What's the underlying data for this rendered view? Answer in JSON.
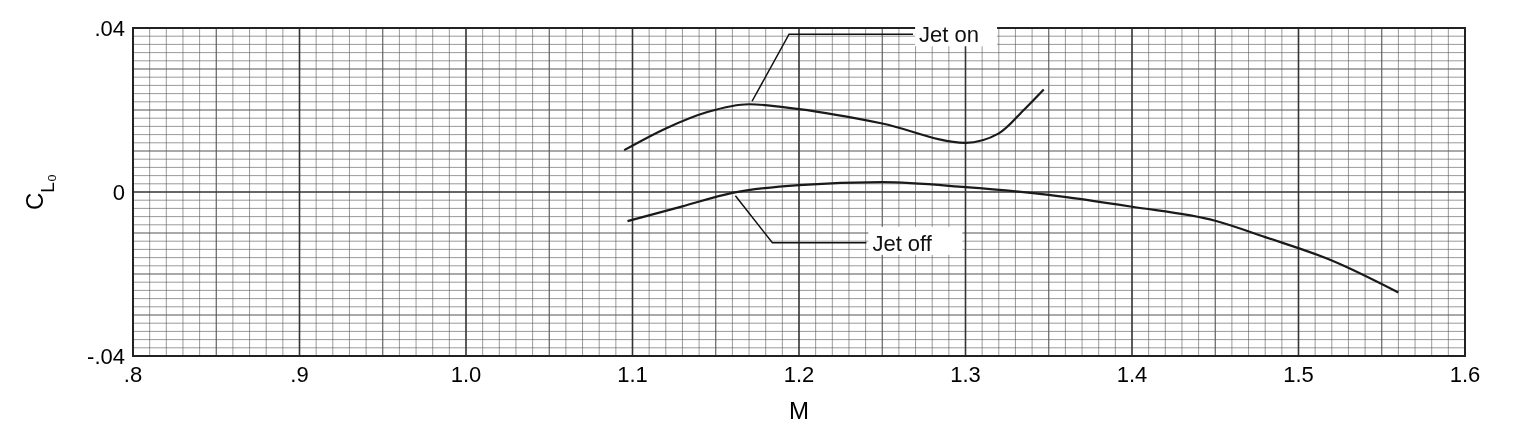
{
  "chart_data": {
    "type": "line",
    "xlabel": "M",
    "ylabel": "C$_{L₀}$",
    "xlim": [
      0.8,
      1.6
    ],
    "ylim": [
      -0.04,
      0.04
    ],
    "xticks": [
      {
        "value": 0.8,
        "label": ".8"
      },
      {
        "value": 0.9,
        "label": ".9"
      },
      {
        "value": 1.0,
        "label": "1.0"
      },
      {
        "value": 1.1,
        "label": "1.1"
      },
      {
        "value": 1.2,
        "label": "1.2"
      },
      {
        "value": 1.3,
        "label": "1.3"
      },
      {
        "value": 1.4,
        "label": "1.4"
      },
      {
        "value": 1.5,
        "label": "1.5"
      },
      {
        "value": 1.6,
        "label": "1.6"
      }
    ],
    "yticks": [
      {
        "value": -0.04,
        "label": "-.04"
      },
      {
        "value": 0,
        "label": "0"
      },
      {
        "value": 0.04,
        "label": ".04"
      }
    ],
    "grid": true,
    "marker": "none",
    "line_style": "solid",
    "series": [
      {
        "name": "Jet on",
        "color": "#1a1a1a",
        "x": [
          1.095,
          1.12,
          1.145,
          1.17,
          1.2,
          1.25,
          1.3,
          1.32,
          1.335,
          1.347
        ],
        "values": [
          0.0102,
          0.0155,
          0.0195,
          0.0214,
          0.0202,
          0.0167,
          0.012,
          0.0143,
          0.02,
          0.025
        ]
      },
      {
        "name": "Jet off",
        "color": "#1a1a1a",
        "x": [
          1.097,
          1.13,
          1.16,
          1.2,
          1.25,
          1.3,
          1.35,
          1.4,
          1.45,
          1.48,
          1.52,
          1.56
        ],
        "values": [
          -0.0071,
          -0.0035,
          -0.0002,
          0.0017,
          0.0024,
          0.0012,
          -0.0007,
          -0.0036,
          -0.007,
          -0.011,
          -0.0167,
          -0.0245
        ]
      }
    ]
  }
}
